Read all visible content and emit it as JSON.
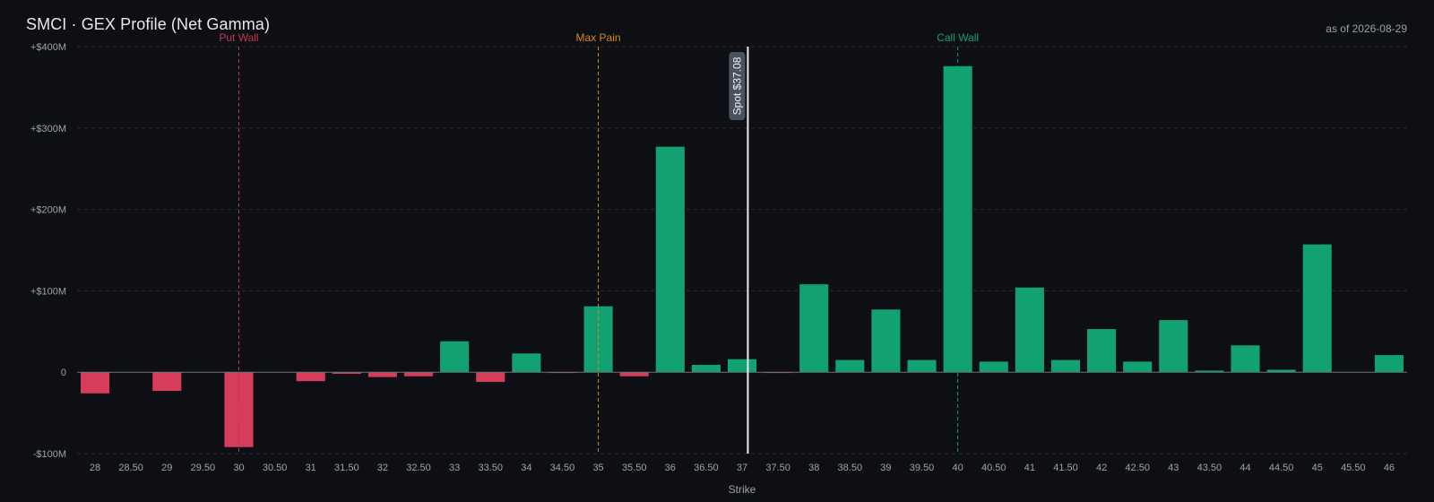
{
  "header": {
    "title": "SMCI · GEX Profile (Net Gamma)",
    "as_of": "as of 2026-08-29"
  },
  "colors": {
    "positive": "#12a170",
    "negative": "#d63d5a",
    "put_wall": "#c2374f",
    "max_pain": "#d58a1e",
    "call_wall": "#12a170",
    "spot": "#e9ebee",
    "grid": "#2a2e36",
    "zero_line": "#6d727a"
  },
  "chart_data": {
    "type": "bar",
    "title": "SMCI · GEX Profile (Net Gamma)",
    "xlabel": "Strike",
    "ylabel": "",
    "ylim": [
      -100,
      400
    ],
    "y_unit": "$M",
    "y_ticks": [
      {
        "value": 400,
        "label": "+$400M"
      },
      {
        "value": 300,
        "label": "+$300M"
      },
      {
        "value": 200,
        "label": "+$200M"
      },
      {
        "value": 100,
        "label": "+$100M"
      },
      {
        "value": 0,
        "label": "0"
      },
      {
        "value": -100,
        "label": "-$100M"
      }
    ],
    "grid": true,
    "categories": [
      "28",
      "28.50",
      "29",
      "29.50",
      "30",
      "30.50",
      "31",
      "31.50",
      "32",
      "32.50",
      "33",
      "33.50",
      "34",
      "34.50",
      "35",
      "35.50",
      "36",
      "36.50",
      "37",
      "37.50",
      "38",
      "38.50",
      "39",
      "39.50",
      "40",
      "40.50",
      "41",
      "41.50",
      "42",
      "42.50",
      "43",
      "43.50",
      "44",
      "44.50",
      "45",
      "45.50",
      "46"
    ],
    "strikes": [
      28,
      28.5,
      29,
      29.5,
      30,
      30.5,
      31,
      31.5,
      32,
      32.5,
      33,
      33.5,
      34,
      34.5,
      35,
      35.5,
      36,
      36.5,
      37,
      37.5,
      38,
      38.5,
      39,
      39.5,
      40,
      40.5,
      41,
      41.5,
      42,
      42.5,
      43,
      43.5,
      44,
      44.5,
      45,
      45.5,
      46
    ],
    "values": [
      -26,
      0,
      -23,
      0,
      -92,
      0,
      -11,
      -2,
      -6,
      -5,
      38,
      -12,
      23,
      -1,
      81,
      -5,
      277,
      9,
      16,
      -1,
      108,
      15,
      77,
      15,
      376,
      13,
      104,
      15,
      53,
      13,
      64,
      2,
      33,
      3,
      157,
      0,
      21
    ],
    "markers": [
      {
        "name": "put_wall",
        "label": "Put Wall",
        "strike": 30
      },
      {
        "name": "max_pain",
        "label": "Max Pain",
        "strike": 35
      },
      {
        "name": "call_wall",
        "label": "Call Wall",
        "strike": 40
      }
    ],
    "spot": {
      "value": 37.08,
      "label": "Spot $37.08"
    }
  }
}
